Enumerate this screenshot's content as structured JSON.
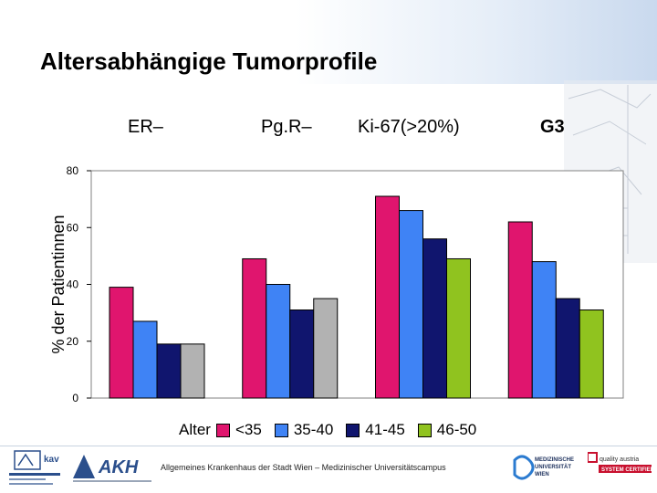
{
  "slide": {
    "title": "Altersabhängige Tumorprofile",
    "group_labels": [
      "ER–",
      "Pg.R–",
      "Ki-67(>20%)",
      "G3"
    ],
    "footer_text": "Allgemeines Krankenhaus der Stadt Wien – Medizinischer Universitätscampus"
  },
  "logos": {
    "left1": "kav",
    "left2": "AKH",
    "right1": "MEDIZINISCHE UNIVERSITÄT WIEN",
    "right2": "quality austria SYSTEM CERTIFIED"
  },
  "chart_data": {
    "type": "bar",
    "categories": [
      "ER–",
      "Pg.R–",
      "Ki-67(>20%)",
      "G3"
    ],
    "ylabel": "% der Patientinnen",
    "ylim": [
      0,
      80
    ],
    "yticks": [
      0,
      20,
      40,
      60,
      80
    ],
    "grid": false,
    "legend_title": "Alter",
    "legend_position": "bottom",
    "series": [
      {
        "name": "<35",
        "color": "#e0156e",
        "values": [
          39,
          49,
          71,
          62
        ]
      },
      {
        "name": "35-40",
        "color": "#3f83f5",
        "values": [
          27,
          40,
          66,
          48
        ]
      },
      {
        "name": "41-45",
        "color": "#10156e",
        "values": [
          19,
          31,
          56,
          35
        ]
      },
      {
        "name": "46-50",
        "color": "#b2b2b2",
        "values": [
          19,
          35,
          49,
          31
        ],
        "colors_by_category": [
          "#b2b2b2",
          "#b2b2b2",
          "#90c31f",
          "#90c31f"
        ]
      }
    ]
  }
}
